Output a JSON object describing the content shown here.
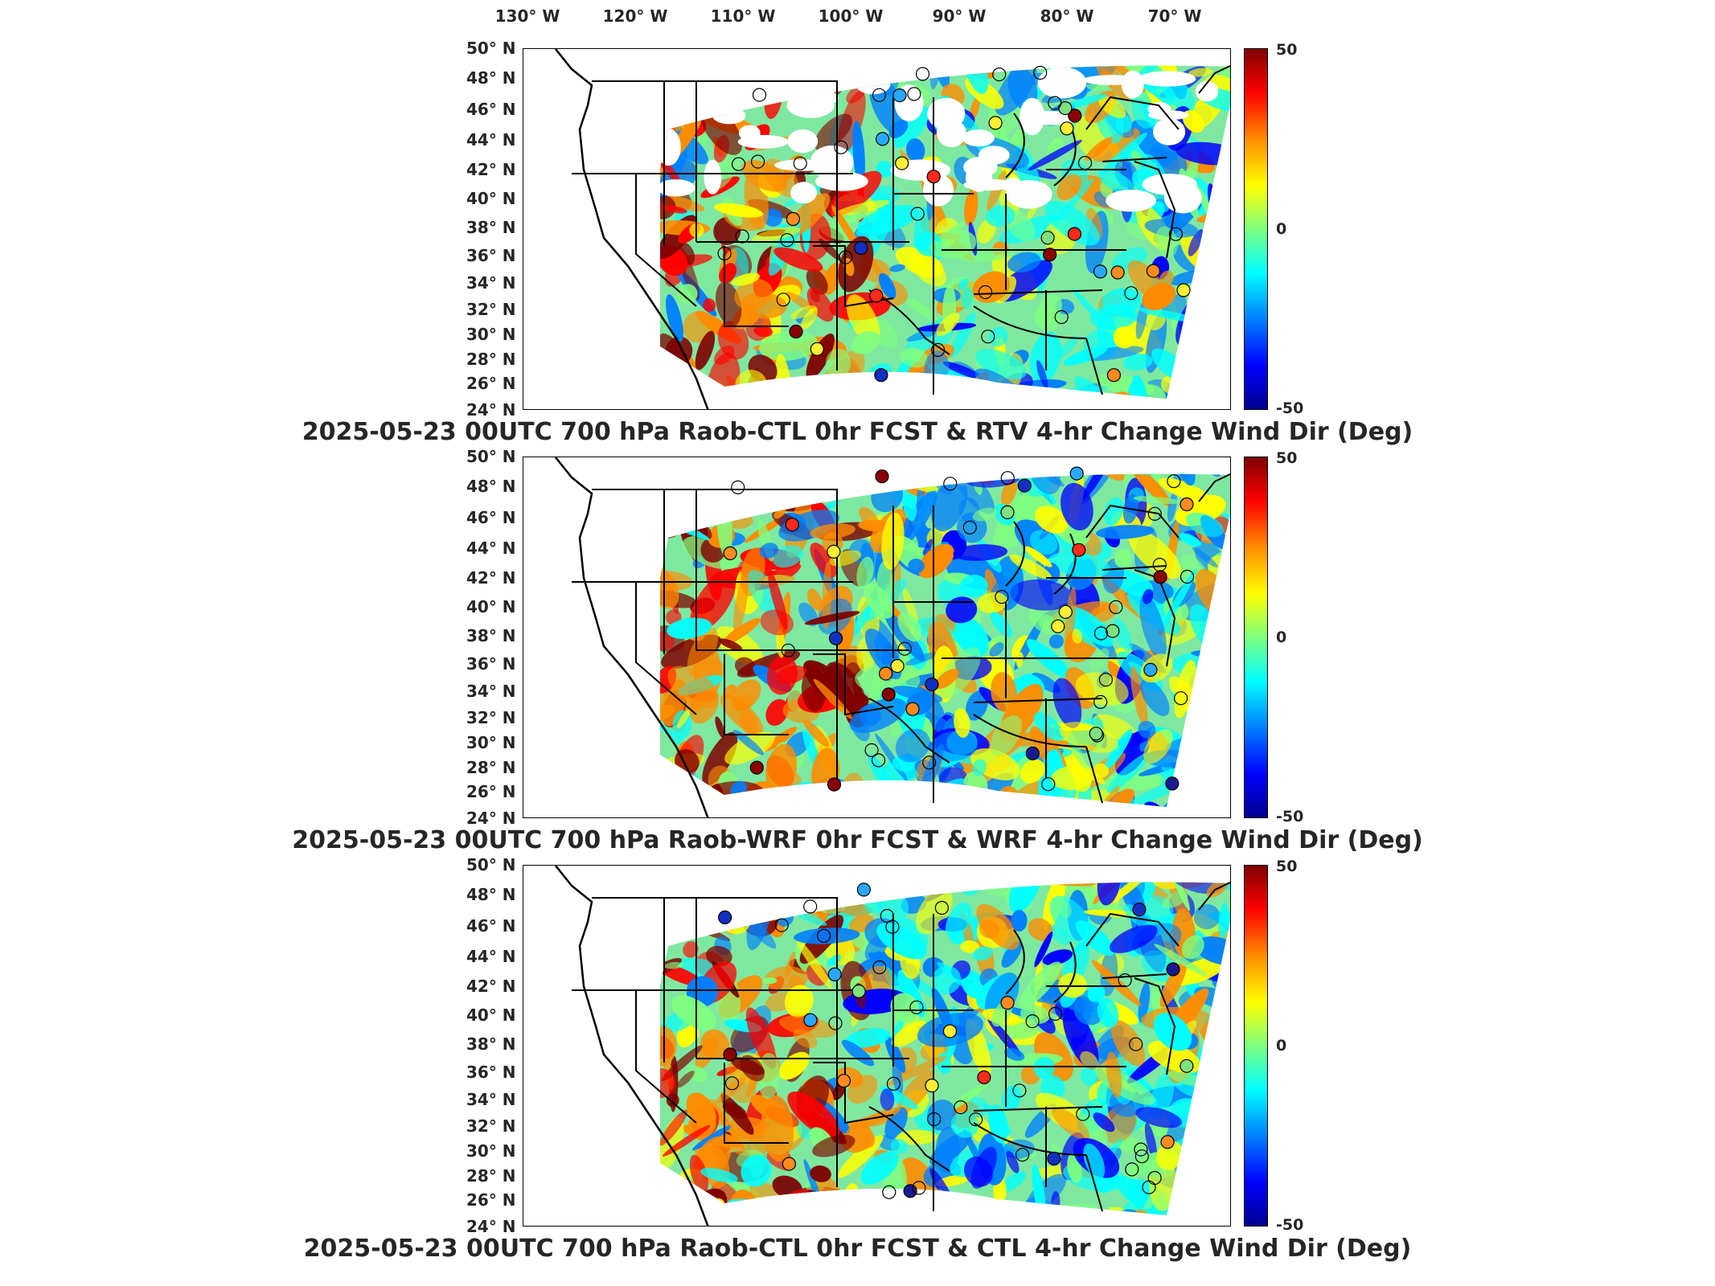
{
  "lon_labels": [
    "130° W",
    "120° W",
    "110° W",
    "100° W",
    "90° W",
    "80° W",
    "70° W"
  ],
  "lat_labels": [
    "50° N",
    "48° N",
    "46° N",
    "44° N",
    "42° N",
    "40° N",
    "38° N",
    "36° N",
    "34° N",
    "32° N",
    "30° N",
    "28° N",
    "26° N",
    "24° N"
  ],
  "colorbar": {
    "max": "50",
    "mid": "0",
    "min": "-50",
    "colors": [
      "#7f0000",
      "#ff0000",
      "#ff8c00",
      "#ffff00",
      "#7fff7f",
      "#00ffff",
      "#0080ff",
      "#0000ff",
      "#00008f"
    ]
  },
  "panels": [
    {
      "title": "2025-05-23 00UTC 700 hPa Raob-CTL 0hr FCST & RTV 4-hr Change Wind Dir (Deg)"
    },
    {
      "title": "2025-05-23 00UTC 700 hPa Raob-WRF 0hr FCST & WRF 4-hr Change Wind Dir (Deg)"
    },
    {
      "title": "2025-05-23 00UTC 700 hPa Raob-CTL 0hr FCST & CTL 4-hr Change Wind Dir (Deg)"
    }
  ]
}
